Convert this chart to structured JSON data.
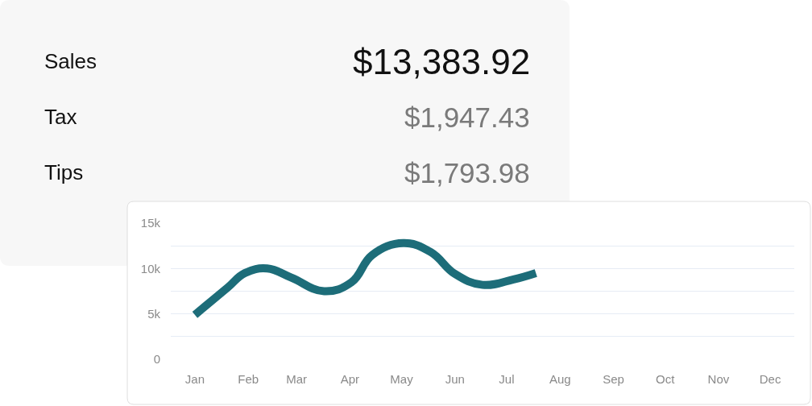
{
  "chart_data": [
    {
      "type": "other",
      "annotations": [
        "Sales",
        "$13,383.92",
        "Tax",
        "$1,947.43",
        "Tips",
        "$1,793.98"
      ]
    },
    {
      "type": "line",
      "x": [
        "--01-16",
        "--02-04",
        "--02-14",
        "--02-27",
        "--03-13",
        "--04-01",
        "--04-17",
        "--04-29",
        "--05-17",
        "--06-02",
        "--06-16",
        "--07-02",
        "--07-20",
        "--08-02"
      ],
      "series": [
        {
          "color": "#1d6d79",
          "values": [
            4900,
            7900,
            9500,
            10000,
            9000,
            7500,
            8500,
            11500,
            12800,
            11800,
            9400,
            8200,
            8800,
            9500
          ]
        }
      ],
      "xlim": [
        "--01-02",
        "--12-30"
      ],
      "xticks": [
        {
          "value": "--01-16",
          "label": "Jan"
        },
        {
          "value": "--02-16",
          "label": "Feb"
        },
        {
          "value": "--03-16",
          "label": "Mar"
        },
        {
          "value": "--04-16",
          "label": "Apr"
        },
        {
          "value": "--05-16",
          "label": "May"
        },
        {
          "value": "--06-16",
          "label": "Jun"
        },
        {
          "value": "--07-16",
          "label": "Jul"
        },
        {
          "value": "--08-16",
          "label": "Aug"
        },
        {
          "value": "--09-16",
          "label": "Sep"
        },
        {
          "value": "--10-16",
          "label": "Oct"
        },
        {
          "value": "--11-16",
          "label": "Nov"
        },
        {
          "value": "--12-16",
          "label": "Dec"
        }
      ],
      "ylim": [
        0,
        15000
      ],
      "yticks": [
        0,
        {
          "value": 2500,
          "label": null
        },
        {
          "value": 5000,
          "label": "5k"
        },
        {
          "value": 7500,
          "label": null
        },
        {
          "value": 10000,
          "label": "10k"
        },
        {
          "value": 12500,
          "label": null
        },
        {
          "value": 15000,
          "label": "15k"
        }
      ],
      "grid": "y",
      "line_style": "solid"
    }
  ]
}
